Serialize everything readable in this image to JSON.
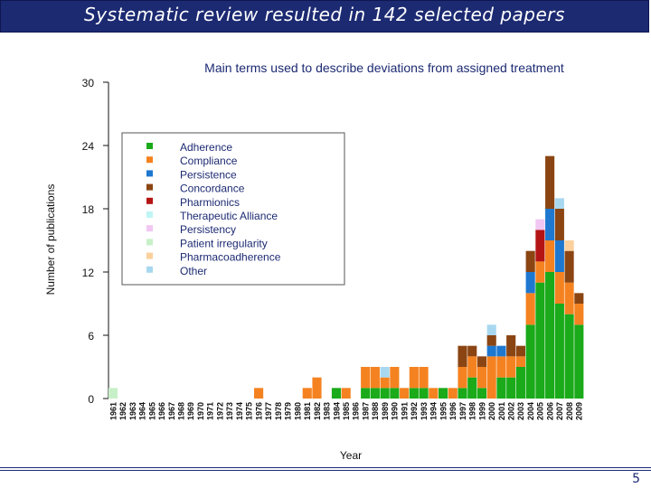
{
  "slide": {
    "title": "Systematic review resulted in 142 selected papers",
    "page_number": "5"
  },
  "colors": {
    "title_bar": "#1c2a72",
    "text_dark": "#1c2a72"
  },
  "chart_data": {
    "type": "bar",
    "stacked": true,
    "title": "Main terms used to describe deviations from assigned treatment",
    "xlabel": "Year",
    "ylabel": "Number of publications",
    "ylim": [
      0,
      30
    ],
    "yticks": [
      0,
      6,
      12,
      18,
      24,
      30
    ],
    "grid": false,
    "legend_position": "top-left",
    "categories": [
      "1961",
      "1962",
      "1963",
      "1964",
      "1965",
      "1966",
      "1967",
      "1968",
      "1969",
      "1970",
      "1971",
      "1972",
      "1973",
      "1974",
      "1975",
      "1976",
      "1977",
      "1978",
      "1979",
      "1980",
      "1981",
      "1982",
      "1983",
      "1984",
      "1985",
      "1986",
      "1987",
      "1988",
      "1989",
      "1990",
      "1991",
      "1992",
      "1993",
      "1994",
      "1995",
      "1996",
      "1997",
      "1998",
      "1999",
      "2000",
      "2001",
      "2002",
      "2003",
      "2004",
      "2005",
      "2006",
      "2007",
      "2008",
      "2009"
    ],
    "series": [
      {
        "name": "Adherence",
        "color": "#1aaa1a",
        "values": [
          0,
          0,
          0,
          0,
          0,
          0,
          0,
          0,
          0,
          0,
          0,
          0,
          0,
          0,
          0,
          0,
          0,
          0,
          0,
          0,
          0,
          0,
          0,
          1,
          0,
          0,
          1,
          1,
          1,
          1,
          0,
          1,
          1,
          0,
          1,
          0,
          1,
          2,
          1,
          0,
          2,
          2,
          3,
          7,
          11,
          12,
          9,
          8,
          7
        ]
      },
      {
        "name": "Compliance",
        "color": "#f58220",
        "values": [
          0,
          0,
          0,
          0,
          0,
          0,
          0,
          0,
          0,
          0,
          0,
          0,
          0,
          0,
          0,
          1,
          0,
          0,
          0,
          0,
          1,
          2,
          0,
          0,
          1,
          0,
          2,
          2,
          1,
          2,
          1,
          2,
          2,
          1,
          0,
          1,
          2,
          2,
          2,
          4,
          2,
          2,
          1,
          3,
          2,
          3,
          3,
          3,
          2
        ]
      },
      {
        "name": "Persistence",
        "color": "#1e78d0",
        "values": [
          0,
          0,
          0,
          0,
          0,
          0,
          0,
          0,
          0,
          0,
          0,
          0,
          0,
          0,
          0,
          0,
          0,
          0,
          0,
          0,
          0,
          0,
          0,
          0,
          0,
          0,
          0,
          0,
          0,
          0,
          0,
          0,
          0,
          0,
          0,
          0,
          0,
          0,
          0,
          1,
          1,
          0,
          0,
          2,
          0,
          3,
          3,
          0,
          0
        ]
      },
      {
        "name": "Concordance",
        "color": "#8b4513",
        "values": [
          0,
          0,
          0,
          0,
          0,
          0,
          0,
          0,
          0,
          0,
          0,
          0,
          0,
          0,
          0,
          0,
          0,
          0,
          0,
          0,
          0,
          0,
          0,
          0,
          0,
          0,
          0,
          0,
          0,
          0,
          0,
          0,
          0,
          0,
          0,
          0,
          2,
          1,
          1,
          1,
          0,
          2,
          1,
          2,
          0,
          5,
          3,
          3,
          1
        ]
      },
      {
        "name": "Pharmionics",
        "color": "#b41414",
        "values": [
          0,
          0,
          0,
          0,
          0,
          0,
          0,
          0,
          0,
          0,
          0,
          0,
          0,
          0,
          0,
          0,
          0,
          0,
          0,
          0,
          0,
          0,
          0,
          0,
          0,
          0,
          0,
          0,
          0,
          0,
          0,
          0,
          0,
          0,
          0,
          0,
          0,
          0,
          0,
          0,
          0,
          0,
          0,
          0,
          3,
          0,
          0,
          0,
          0
        ]
      },
      {
        "name": "Therapeutic Alliance",
        "color": "#bff5f5",
        "values": [
          0,
          0,
          0,
          0,
          0,
          0,
          0,
          0,
          0,
          0,
          0,
          0,
          0,
          0,
          0,
          0,
          0,
          0,
          0,
          0,
          0,
          0,
          0,
          0,
          0,
          0,
          0,
          0,
          0,
          0,
          0,
          0,
          0,
          0,
          0,
          0,
          0,
          0,
          0,
          0,
          0,
          0,
          0,
          0,
          0,
          0,
          0,
          0,
          0
        ]
      },
      {
        "name": "Persistency",
        "color": "#f2c6f2",
        "values": [
          0,
          0,
          0,
          0,
          0,
          0,
          0,
          0,
          0,
          0,
          0,
          0,
          0,
          0,
          0,
          0,
          0,
          0,
          0,
          0,
          0,
          0,
          0,
          0,
          0,
          0,
          0,
          0,
          0,
          0,
          0,
          0,
          0,
          0,
          0,
          0,
          0,
          0,
          0,
          0,
          0,
          0,
          0,
          0,
          1,
          0,
          0,
          0,
          0
        ]
      },
      {
        "name": "Patient irregularity",
        "color": "#c8f0c8",
        "values": [
          1,
          0,
          0,
          0,
          0,
          0,
          0,
          0,
          0,
          0,
          0,
          0,
          0,
          0,
          0,
          0,
          0,
          0,
          0,
          0,
          0,
          0,
          0,
          0,
          0,
          0,
          0,
          0,
          0,
          0,
          0,
          0,
          0,
          0,
          0,
          0,
          0,
          0,
          0,
          0,
          0,
          0,
          0,
          0,
          0,
          0,
          0,
          0,
          0
        ]
      },
      {
        "name": "Pharmacoadherence",
        "color": "#fbd09c",
        "values": [
          0,
          0,
          0,
          0,
          0,
          0,
          0,
          0,
          0,
          0,
          0,
          0,
          0,
          0,
          0,
          0,
          0,
          0,
          0,
          0,
          0,
          0,
          0,
          0,
          0,
          0,
          0,
          0,
          0,
          0,
          0,
          0,
          0,
          0,
          0,
          0,
          0,
          0,
          0,
          0,
          0,
          0,
          0,
          0,
          0,
          0,
          0,
          1,
          0
        ]
      },
      {
        "name": "Other",
        "color": "#a8d8f0",
        "values": [
          0,
          0,
          0,
          0,
          0,
          0,
          0,
          0,
          0,
          0,
          0,
          0,
          0,
          0,
          0,
          0,
          0,
          0,
          0,
          0,
          0,
          0,
          0,
          0,
          0,
          0,
          0,
          0,
          1,
          0,
          0,
          0,
          0,
          0,
          0,
          0,
          0,
          0,
          0,
          1,
          0,
          0,
          0,
          0,
          0,
          0,
          1,
          0,
          0
        ]
      }
    ]
  }
}
